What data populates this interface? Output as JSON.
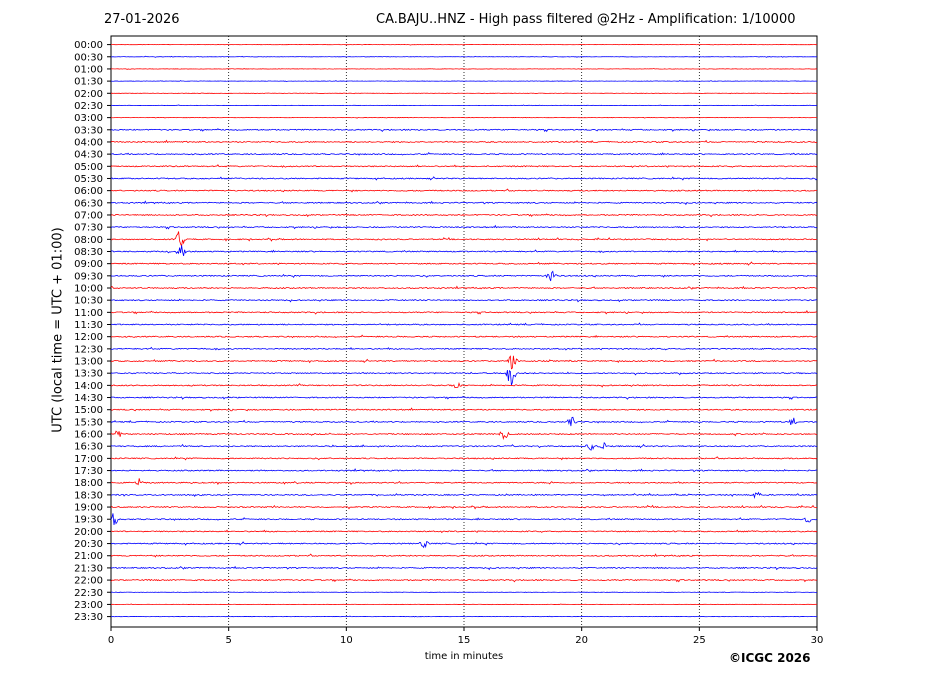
{
  "header": {
    "date": "27-01-2026",
    "title": "CA.BAJU..HNZ - High pass filtered @2Hz - Amplification: 1/10000"
  },
  "footer": {
    "copyright": "©ICGC 2026"
  },
  "chart_data": {
    "type": "line",
    "title": "CA.BAJU..HNZ - High pass filtered @2Hz - Amplification: 1/10000",
    "xlabel": "time in minutes",
    "ylabel": "UTC (local time = UTC + 01:00)",
    "xlim": [
      0,
      30
    ],
    "xticks": [
      0,
      5,
      10,
      15,
      20,
      25,
      30
    ],
    "row_labels": [
      "00:00",
      "00:30",
      "01:00",
      "01:30",
      "02:00",
      "02:30",
      "03:00",
      "03:30",
      "04:00",
      "04:30",
      "05:00",
      "05:30",
      "06:00",
      "06:30",
      "07:00",
      "07:30",
      "08:00",
      "08:30",
      "09:00",
      "09:30",
      "10:00",
      "10:30",
      "11:00",
      "11:30",
      "12:00",
      "12:30",
      "13:00",
      "13:30",
      "14:00",
      "14:30",
      "15:00",
      "15:30",
      "16:00",
      "16:30",
      "17:00",
      "17:30",
      "18:00",
      "18:30",
      "19:00",
      "19:30",
      "20:00",
      "20:30",
      "21:00",
      "21:30",
      "22:00",
      "22:30",
      "23:00",
      "23:30"
    ],
    "trace_colors": [
      "#ff0000",
      "#0000ff"
    ],
    "grid": "vertical dotted at x ticks"
  }
}
